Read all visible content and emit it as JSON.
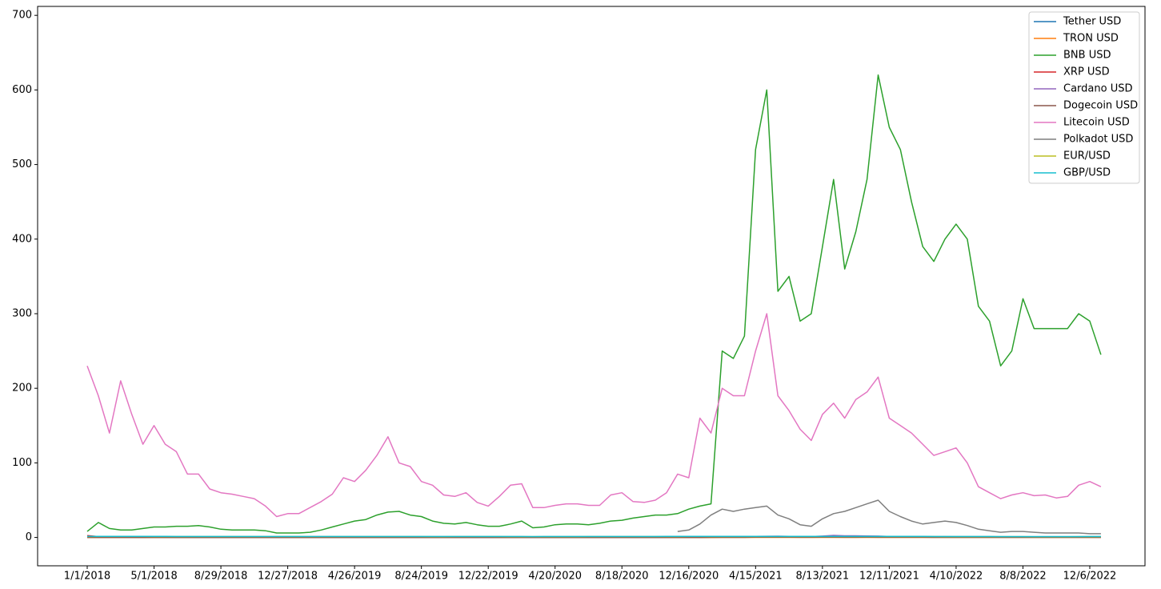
{
  "chart_data": {
    "type": "line",
    "categories": [
      "1/1/2018",
      null,
      null,
      null,
      null,
      null,
      "5/1/2018",
      null,
      null,
      null,
      null,
      null,
      "8/29/2018",
      null,
      null,
      null,
      null,
      null,
      "12/27/2018",
      null,
      null,
      null,
      null,
      null,
      "4/26/2019",
      null,
      null,
      null,
      null,
      null,
      "8/24/2019",
      null,
      null,
      null,
      null,
      null,
      "12/22/2019",
      null,
      null,
      null,
      null,
      null,
      "4/20/2020",
      null,
      null,
      null,
      null,
      null,
      "8/18/2020",
      null,
      null,
      null,
      null,
      null,
      "12/16/2020",
      null,
      null,
      null,
      null,
      null,
      "4/15/2021",
      null,
      null,
      null,
      null,
      null,
      "8/13/2021",
      null,
      null,
      null,
      null,
      null,
      "12/11/2021",
      null,
      null,
      null,
      null,
      null,
      "4/10/2022",
      null,
      null,
      null,
      null,
      null,
      "8/8/2022",
      null,
      null,
      null,
      null,
      null,
      "12/6/2022",
      null
    ],
    "ylim": [
      -38,
      712
    ],
    "yticks": [
      0,
      100,
      200,
      300,
      400,
      500,
      600,
      700
    ],
    "legend": "upper right",
    "series": [
      {
        "name": "Tether USD",
        "color": "#1f77b4",
        "values": [
          1,
          1,
          1,
          1,
          1,
          1,
          1,
          1,
          1,
          1,
          1,
          1,
          1,
          1,
          1,
          1,
          1,
          1,
          1,
          1,
          1,
          1,
          1,
          1,
          1,
          1,
          1,
          1,
          1,
          1,
          1,
          1,
          1,
          1,
          1,
          1,
          1,
          1,
          1,
          1,
          1,
          1,
          1,
          1,
          1,
          1,
          1,
          1,
          1,
          1,
          1,
          1,
          1,
          1,
          1,
          1,
          1,
          1,
          1,
          1,
          1,
          1,
          1,
          1,
          1,
          1,
          1,
          1,
          1,
          1,
          1,
          1,
          1,
          1,
          1,
          1,
          1,
          1,
          1,
          1,
          1,
          1,
          1,
          1,
          1,
          1,
          1,
          1,
          1,
          1,
          1,
          1
        ]
      },
      {
        "name": "TRON USD",
        "color": "#ff7f0e",
        "values": [
          0.05,
          0.07,
          0.04,
          0.04,
          0.04,
          0.03,
          0.05,
          0.04,
          0.03,
          0.02,
          0.03,
          0.02,
          0.02,
          0.02,
          0.02,
          0.02,
          0.02,
          0.01,
          0.02,
          0.02,
          0.02,
          0.02,
          0.02,
          0.02,
          0.02,
          0.03,
          0.03,
          0.03,
          0.02,
          0.02,
          0.02,
          0.01,
          0.01,
          0.02,
          0.02,
          0.01,
          0.01,
          0.01,
          0.02,
          0.02,
          0.01,
          0.01,
          0.01,
          0.02,
          0.02,
          0.02,
          0.02,
          0.03,
          0.03,
          0.03,
          0.03,
          0.03,
          0.03,
          0.03,
          0.03,
          0.03,
          0.03,
          0.05,
          0.05,
          0.06,
          0.12,
          0.13,
          0.08,
          0.07,
          0.06,
          0.06,
          0.07,
          0.09,
          0.09,
          0.1,
          0.1,
          0.1,
          0.09,
          0.08,
          0.07,
          0.07,
          0.06,
          0.06,
          0.07,
          0.07,
          0.08,
          0.07,
          0.07,
          0.07,
          0.07,
          0.07,
          0.06,
          0.06,
          0.06,
          0.05,
          0.05,
          0.05
        ]
      },
      {
        "name": "BNB USD",
        "color": "#2ca02c",
        "values": [
          8,
          20,
          12,
          10,
          10,
          12,
          14,
          14,
          15,
          15,
          16,
          14,
          11,
          10,
          10,
          10,
          9,
          6,
          6,
          6,
          7,
          10,
          14,
          18,
          22,
          24,
          30,
          34,
          35,
          30,
          28,
          22,
          19,
          18,
          20,
          17,
          15,
          15,
          18,
          22,
          13,
          14,
          17,
          18,
          18,
          17,
          19,
          22,
          23,
          26,
          28,
          30,
          30,
          32,
          38,
          42,
          45,
          250,
          240,
          270,
          520,
          600,
          330,
          350,
          290,
          300,
          390,
          480,
          360,
          410,
          480,
          620,
          550,
          520,
          450,
          390,
          370,
          400,
          420,
          400,
          310,
          290,
          230,
          250,
          320,
          280,
          280,
          280,
          280,
          300,
          290,
          245
        ]
      },
      {
        "name": "XRP USD",
        "color": "#d62728",
        "values": [
          2.4,
          1.2,
          0.9,
          0.8,
          0.6,
          0.5,
          0.8,
          0.6,
          0.55,
          0.45,
          0.45,
          0.33,
          0.3,
          0.35,
          0.5,
          0.48,
          0.42,
          0.3,
          0.36,
          0.32,
          0.31,
          0.32,
          0.31,
          0.35,
          0.3,
          0.42,
          0.42,
          0.4,
          0.3,
          0.3,
          0.27,
          0.25,
          0.26,
          0.29,
          0.24,
          0.22,
          0.19,
          0.22,
          0.24,
          0.27,
          0.16,
          0.18,
          0.19,
          0.2,
          0.2,
          0.18,
          0.2,
          0.25,
          0.29,
          0.24,
          0.25,
          0.25,
          0.28,
          0.6,
          0.5,
          0.23,
          0.27,
          0.5,
          0.45,
          0.55,
          1.4,
          1.5,
          1,
          0.85,
          0.65,
          0.6,
          1.1,
          1.2,
          0.95,
          1.1,
          1.1,
          1.1,
          0.85,
          0.83,
          0.75,
          0.8,
          0.7,
          0.8,
          0.75,
          0.6,
          0.4,
          0.38,
          0.32,
          0.35,
          0.36,
          0.34,
          0.45,
          0.48,
          0.45,
          0.39,
          0.39,
          0.35
        ]
      },
      {
        "name": "Cardano USD",
        "color": "#9467bd",
        "values": [
          0.7,
          0.55,
          0.4,
          0.35,
          0.22,
          0.2,
          0.35,
          0.25,
          0.2,
          0.15,
          0.14,
          0.1,
          0.1,
          0.08,
          0.08,
          0.07,
          0.05,
          0.03,
          0.05,
          0.04,
          0.04,
          0.05,
          0.06,
          0.08,
          0.07,
          0.09,
          0.09,
          0.08,
          0.06,
          0.06,
          0.05,
          0.04,
          0.04,
          0.04,
          0.04,
          0.03,
          0.03,
          0.04,
          0.05,
          0.06,
          0.03,
          0.03,
          0.04,
          0.05,
          0.08,
          0.08,
          0.11,
          0.14,
          0.11,
          0.1,
          0.1,
          0.1,
          0.1,
          0.15,
          0.16,
          0.3,
          0.35,
          0.9,
          1.1,
          1.2,
          1.4,
          1.6,
          1.7,
          1.4,
          1.3,
          1.2,
          1.8,
          2.8,
          2.2,
          2.2,
          1.9,
          1.8,
          1.3,
          1.3,
          1.3,
          1.1,
          0.9,
          1.1,
          1,
          0.8,
          0.5,
          0.5,
          0.45,
          0.48,
          0.45,
          0.5,
          0.47,
          0.43,
          0.39,
          0.37,
          0.32,
          0.25
        ]
      },
      {
        "name": "Dogecoin USD",
        "color": "#8c564b",
        "values": [
          0.009,
          0.007,
          0.005,
          0.004,
          0.003,
          0.003,
          0.005,
          0.004,
          0.003,
          0.003,
          0.003,
          0.003,
          0.003,
          0.006,
          0.006,
          0.005,
          0.004,
          0.002,
          0.002,
          0.002,
          0.002,
          0.002,
          0.002,
          0.002,
          0.002,
          0.003,
          0.003,
          0.003,
          0.003,
          0.003,
          0.003,
          0.002,
          0.002,
          0.003,
          0.002,
          0.002,
          0.002,
          0.002,
          0.002,
          0.003,
          0.002,
          0.002,
          0.002,
          0.003,
          0.003,
          0.003,
          0.003,
          0.003,
          0.003,
          0.003,
          0.003,
          0.003,
          0.003,
          0.003,
          0.004,
          0.01,
          0.04,
          0.06,
          0.05,
          0.06,
          0.35,
          0.5,
          0.35,
          0.32,
          0.25,
          0.18,
          0.26,
          0.3,
          0.22,
          0.24,
          0.27,
          0.23,
          0.18,
          0.17,
          0.18,
          0.15,
          0.13,
          0.13,
          0.14,
          0.14,
          0.09,
          0.08,
          0.07,
          0.07,
          0.07,
          0.06,
          0.06,
          0.06,
          0.08,
          0.08,
          0.1,
          0.07
        ]
      },
      {
        "name": "Litecoin USD",
        "color": "#e377c2",
        "values": [
          230,
          190,
          140,
          210,
          165,
          125,
          150,
          125,
          115,
          85,
          85,
          65,
          60,
          58,
          55,
          52,
          42,
          28,
          32,
          32,
          40,
          48,
          58,
          80,
          75,
          90,
          110,
          135,
          100,
          95,
          75,
          70,
          57,
          55,
          60,
          47,
          42,
          55,
          70,
          72,
          40,
          40,
          43,
          45,
          45,
          43,
          43,
          57,
          60,
          48,
          47,
          50,
          60,
          85,
          80,
          160,
          140,
          200,
          190,
          190,
          250,
          300,
          190,
          170,
          145,
          130,
          165,
          180,
          160,
          185,
          195,
          215,
          160,
          150,
          140,
          125,
          110,
          115,
          120,
          100,
          68,
          60,
          52,
          57,
          60,
          56,
          57,
          53,
          55,
          70,
          75,
          68
        ]
      },
      {
        "name": "Polkadot USD",
        "color": "#7f7f7f",
        "values": [
          null,
          null,
          null,
          null,
          null,
          null,
          null,
          null,
          null,
          null,
          null,
          null,
          null,
          null,
          null,
          null,
          null,
          null,
          null,
          null,
          null,
          null,
          null,
          null,
          null,
          null,
          null,
          null,
          null,
          null,
          null,
          null,
          null,
          null,
          null,
          null,
          null,
          null,
          null,
          null,
          null,
          null,
          null,
          null,
          null,
          null,
          null,
          null,
          null,
          null,
          null,
          null,
          null,
          8,
          10,
          18,
          30,
          38,
          35,
          38,
          40,
          42,
          30,
          25,
          17,
          15,
          25,
          32,
          35,
          40,
          45,
          50,
          35,
          28,
          22,
          18,
          20,
          22,
          20,
          16,
          11,
          9,
          7,
          8,
          8,
          7,
          6,
          6,
          6,
          6,
          5,
          5
        ]
      },
      {
        "name": "EUR/USD",
        "color": "#bcbd22",
        "values": [
          1.2,
          1.22,
          1.24,
          1.23,
          1.23,
          1.23,
          1.2,
          1.17,
          1.16,
          1.17,
          1.17,
          1.16,
          1.17,
          1.17,
          1.15,
          1.14,
          1.14,
          1.14,
          1.14,
          1.14,
          1.14,
          1.13,
          1.13,
          1.12,
          1.12,
          1.12,
          1.13,
          1.13,
          1.12,
          1.11,
          1.11,
          1.1,
          1.1,
          1.11,
          1.11,
          1.11,
          1.11,
          1.11,
          1.1,
          1.09,
          1.1,
          1.1,
          1.09,
          1.09,
          1.1,
          1.12,
          1.13,
          1.17,
          1.18,
          1.18,
          1.17,
          1.18,
          1.18,
          1.19,
          1.22,
          1.22,
          1.21,
          1.21,
          1.21,
          1.19,
          1.19,
          1.2,
          1.21,
          1.21,
          1.19,
          1.18,
          1.18,
          1.17,
          1.17,
          1.16,
          1.16,
          1.15,
          1.13,
          1.13,
          1.14,
          1.14,
          1.11,
          1.1,
          1.09,
          1.06,
          1.05,
          1.07,
          1.05,
          1.02,
          1.02,
          1,
          1,
          0.98,
          0.99,
          1.03,
          1.05,
          1.06
        ]
      },
      {
        "name": "GBP/USD",
        "color": "#17becf",
        "values": [
          1.35,
          1.38,
          1.4,
          1.4,
          1.42,
          1.41,
          1.36,
          1.34,
          1.32,
          1.32,
          1.31,
          1.3,
          1.3,
          1.31,
          1.31,
          1.3,
          1.28,
          1.27,
          1.27,
          1.3,
          1.3,
          1.31,
          1.32,
          1.3,
          1.3,
          1.28,
          1.27,
          1.27,
          1.25,
          1.22,
          1.22,
          1.23,
          1.23,
          1.29,
          1.29,
          1.29,
          1.31,
          1.31,
          1.3,
          1.29,
          1.15,
          1.24,
          1.24,
          1.25,
          1.23,
          1.25,
          1.26,
          1.31,
          1.32,
          1.3,
          1.29,
          1.3,
          1.33,
          1.34,
          1.35,
          1.36,
          1.37,
          1.39,
          1.39,
          1.38,
          1.38,
          1.39,
          1.41,
          1.41,
          1.38,
          1.39,
          1.38,
          1.38,
          1.37,
          1.37,
          1.36,
          1.35,
          1.33,
          1.35,
          1.36,
          1.35,
          1.32,
          1.31,
          1.31,
          1.25,
          1.24,
          1.22,
          1.21,
          1.2,
          1.2,
          1.16,
          1.13,
          1.12,
          1.13,
          1.17,
          1.22,
          1.22
        ]
      }
    ]
  }
}
